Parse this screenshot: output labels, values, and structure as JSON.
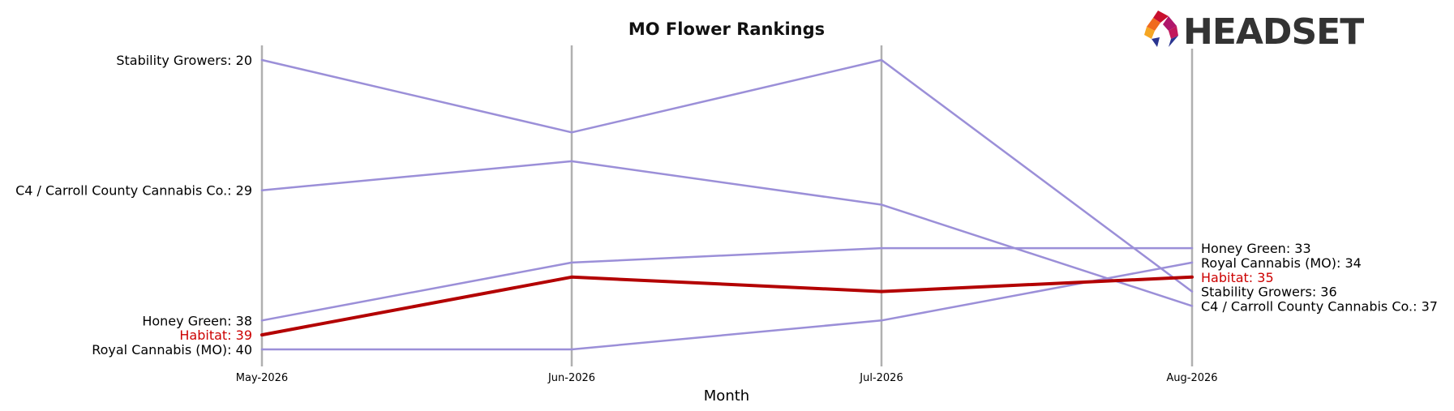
{
  "chart_data": {
    "type": "line",
    "title": "MO Flower Rankings",
    "xlabel": "Month",
    "ylabel": "",
    "categories": [
      "May-2026",
      "Jun-2026",
      "Jul-2026",
      "Aug-2026"
    ],
    "y_inverted": true,
    "ylim": [
      20,
      40
    ],
    "grid": false,
    "series": [
      {
        "name": "Stability Growers",
        "values": [
          20,
          25,
          20,
          36
        ],
        "color": "#9b8fd8",
        "highlight": false
      },
      {
        "name": "C4 / Carroll County Cannabis Co.",
        "values": [
          29,
          27,
          30,
          37
        ],
        "color": "#9b8fd8",
        "highlight": false
      },
      {
        "name": "Honey Green",
        "values": [
          38,
          34,
          33,
          33
        ],
        "color": "#9b8fd8",
        "highlight": false
      },
      {
        "name": "Royal Cannabis (MO)",
        "values": [
          40,
          40,
          38,
          34
        ],
        "color": "#9b8fd8",
        "highlight": false
      },
      {
        "name": "Habitat",
        "values": [
          39,
          35,
          36,
          35
        ],
        "color": "#b30000",
        "highlight": true
      }
    ],
    "left_labels": [
      {
        "text": "Stability Growers: 20",
        "rank": 20,
        "highlight": false
      },
      {
        "text": "C4 / Carroll County Cannabis Co.: 29",
        "rank": 29,
        "highlight": false
      },
      {
        "text": "Honey Green: 38",
        "rank": 38,
        "highlight": false
      },
      {
        "text": "Habitat: 39",
        "rank": 39,
        "highlight": true
      },
      {
        "text": "Royal Cannabis (MO): 40",
        "rank": 40,
        "highlight": false
      }
    ],
    "right_labels": [
      {
        "text": "Honey Green: 33",
        "rank": 33,
        "highlight": false
      },
      {
        "text": "Royal Cannabis (MO): 34",
        "rank": 34,
        "highlight": false
      },
      {
        "text": "Habitat: 35",
        "rank": 35,
        "highlight": true
      },
      {
        "text": "Stability Growers: 36",
        "rank": 36,
        "highlight": false
      },
      {
        "text": "C4 / Carroll County Cannabis Co.: 37",
        "rank": 37,
        "highlight": false
      }
    ]
  },
  "logo": {
    "text": "HEADSET"
  },
  "colors": {
    "vertical_axis": "#b0b0b0",
    "series_default": "#9b8fd8",
    "highlight": "#b30000",
    "highlight_label": "#cc0000"
  }
}
